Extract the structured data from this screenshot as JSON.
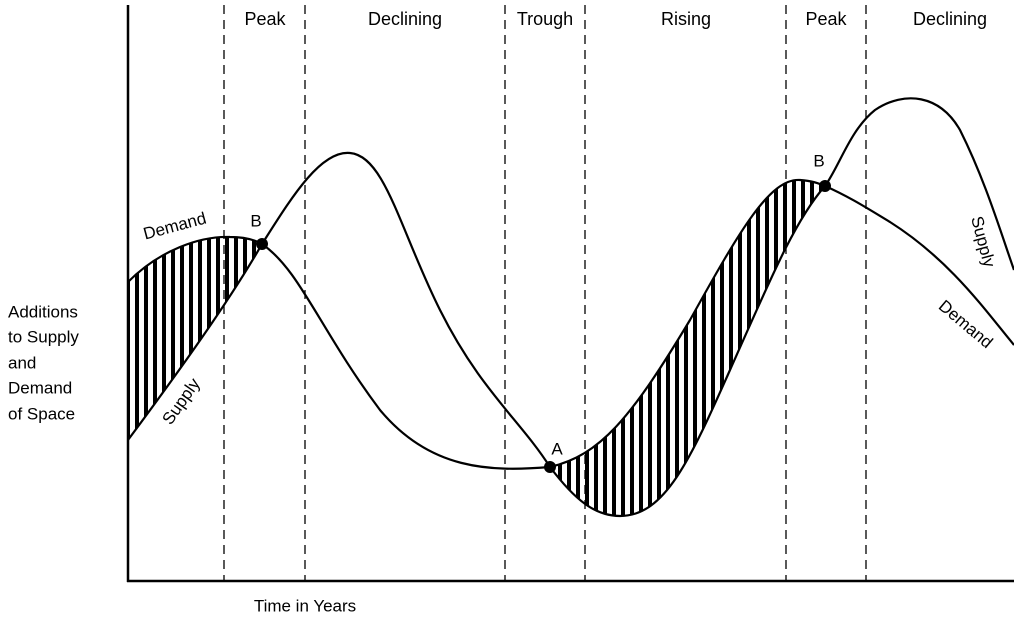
{
  "phases": [
    "Peak",
    "Declining",
    "Trough",
    "Rising",
    "Peak",
    "Declining"
  ],
  "y_axis_label": [
    "Additions",
    "to Supply",
    "and",
    "Demand",
    "of Space"
  ],
  "x_axis_label": "Time in Years",
  "curve_labels": [
    "Demand",
    "Supply",
    "Supply",
    "Demand"
  ],
  "points": [
    "B",
    "A",
    "B"
  ]
}
